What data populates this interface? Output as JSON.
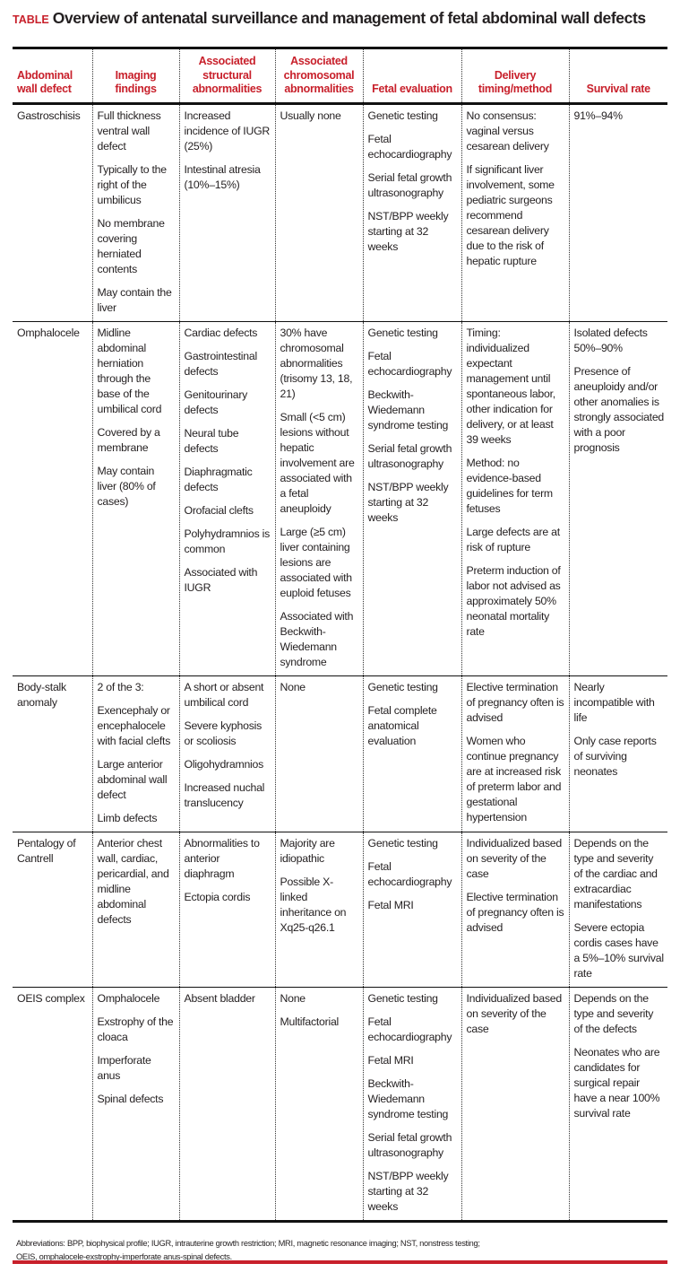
{
  "title": {
    "tag": "TABLE",
    "text": "Overview of antenatal surveillance and management of fetal abdominal wall defects"
  },
  "accent_color": "#c8202b",
  "columns": [
    "Abdominal wall defect",
    "Imaging findings",
    "Associated structural abnormalities",
    "Associated chromosomal abnormalities",
    "Fetal evaluation",
    "Delivery timing/method",
    "Survival rate"
  ],
  "rows": [
    {
      "defect": "Gastroschisis",
      "cells": [
        [
          "Full thickness ventral wall defect",
          "Typically to the right of the umbilicus",
          "No membrane covering herniated contents",
          "May contain the liver"
        ],
        [
          "Increased incidence of IUGR (25%)",
          "Intestinal atresia (10%–15%)"
        ],
        [
          "Usually none"
        ],
        [
          "Genetic testing",
          "Fetal echocardiography",
          "Serial fetal growth ultrasonography",
          "NST/BPP weekly starting at 32 weeks"
        ],
        [
          "No consensus: vaginal versus cesarean delivery",
          "If significant liver involvement, some pediatric surgeons recommend cesarean delivery due to the risk of hepatic rupture"
        ],
        [
          "91%–94%"
        ]
      ]
    },
    {
      "defect": "Omphalocele",
      "cells": [
        [
          "Midline abdominal herniation through the base of the umbilical cord",
          "Covered by a membrane",
          "May contain liver (80% of cases)"
        ],
        [
          "Cardiac defects",
          "Gastrointestinal defects",
          "Genitourinary defects",
          "Neural tube defects",
          "Diaphragmatic defects",
          "Orofacial clefts",
          "Polyhydramnios is common",
          "Associated with IUGR"
        ],
        [
          "30% have chromosomal abnormalities (trisomy 13, 18, 21)",
          "Small (<5 cm) lesions without hepatic involvement are associated with a fetal aneuploidy",
          "Large (≥5 cm) liver containing lesions are associated with euploid fetuses",
          "Associated with Beckwith-Wiedemann syndrome"
        ],
        [
          "Genetic testing",
          "Fetal echocardiography",
          "Beckwith-Wiedemann syndrome testing",
          "Serial fetal growth ultrasonography",
          "NST/BPP weekly starting at 32 weeks"
        ],
        [
          "Timing: individualized expectant management until spontaneous labor, other indication for delivery, or at least 39 weeks",
          "Method: no evidence-based guidelines for term fetuses",
          "Large defects are at risk of rupture",
          "Preterm induction of labor not advised as approximately 50% neonatal mortality rate"
        ],
        [
          "Isolated defects 50%–90%",
          "Presence of aneuploidy and/or other anomalies is strongly associated with a poor prognosis"
        ]
      ]
    },
    {
      "defect": "Body-stalk anomaly",
      "cells": [
        [
          "2 of the 3:",
          "Exencephaly or encephalocele with facial clefts",
          "Large anterior abdominal wall defect",
          "Limb defects"
        ],
        [
          "A short or absent umbilical cord",
          "Severe kyphosis or scoliosis",
          "Oligohydramnios",
          "Increased nuchal translucency"
        ],
        [
          "None"
        ],
        [
          "Genetic testing",
          "Fetal complete anatomical evaluation"
        ],
        [
          "Elective termination of pregnancy often is advised",
          "Women who continue pregnancy are at increased risk of preterm labor and gestational hypertension"
        ],
        [
          "Nearly incompatible with life",
          "Only case reports of surviving neonates"
        ]
      ]
    },
    {
      "defect": "Pentalogy of Cantrell",
      "cells": [
        [
          "Anterior chest wall, cardiac, pericardial, and midline abdominal defects"
        ],
        [
          "Abnormalities to anterior diaphragm",
          "Ectopia cordis"
        ],
        [
          "Majority are idiopathic",
          "Possible X-linked inheritance on Xq25-q26.1"
        ],
        [
          "Genetic testing",
          "Fetal echocardiography",
          "Fetal MRI"
        ],
        [
          "Individualized based on severity of the case",
          "Elective termination of pregnancy often is advised"
        ],
        [
          "Depends on the type and severity of the cardiac and extracardiac manifestations",
          "Severe ectopia cordis cases have a 5%–10% survival rate"
        ]
      ]
    },
    {
      "defect": "OEIS complex",
      "cells": [
        [
          "Omphalocele",
          "Exstrophy of the cloaca",
          "Imperforate anus",
          "Spinal defects"
        ],
        [
          "Absent bladder"
        ],
        [
          "None",
          "Multifactorial"
        ],
        [
          "Genetic testing",
          "Fetal echocardiography",
          "Fetal MRI",
          "Beckwith-Wiedemann syndrome testing",
          "Serial fetal growth ultrasonography",
          "NST/BPP weekly starting at 32 weeks"
        ],
        [
          "Individualized based on severity of the case"
        ],
        [
          "Depends on the type and severity of the defects",
          "Neonates who are candidates for surgical repair have a near 100% survival rate"
        ]
      ]
    }
  ],
  "footnote": {
    "line1": "Abbreviations: BPP, biophysical profile; IUGR, intrauterine growth restriction; MRI, magnetic resonance imaging; NST, nonstress testing;",
    "line2": "OEIS, omphalocele-exstrophy-imperforate anus-spinal defects."
  }
}
